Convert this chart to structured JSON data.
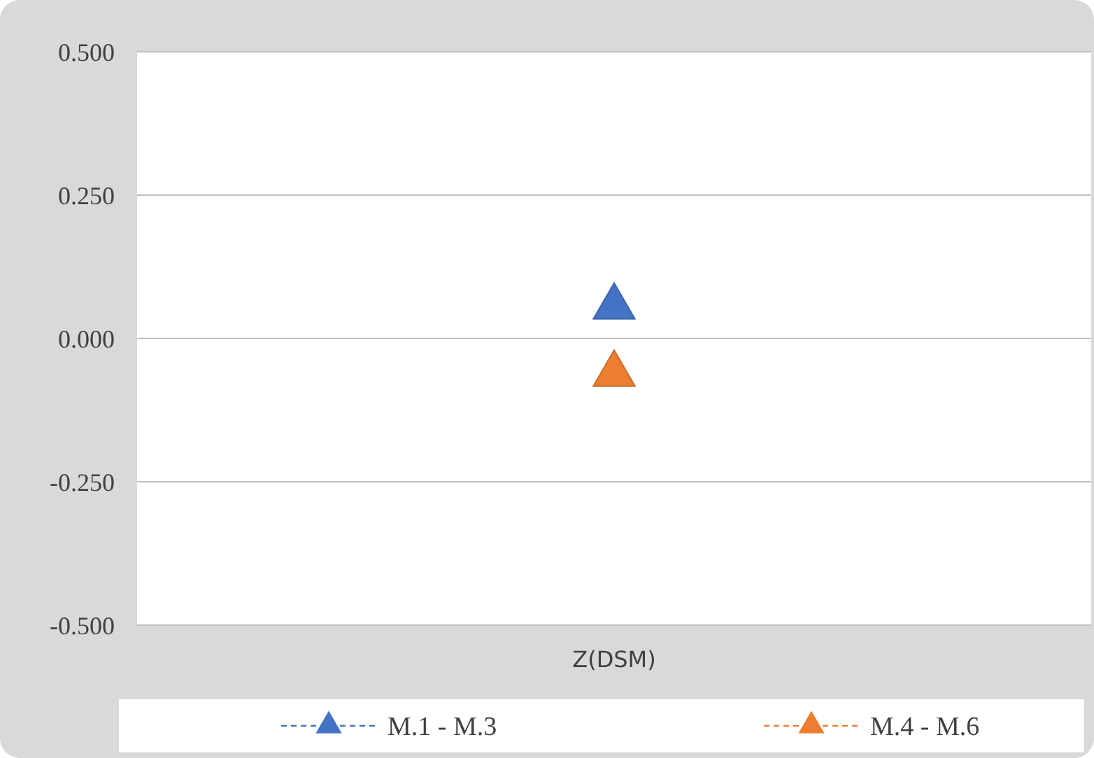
{
  "chart_data": {
    "type": "line",
    "categories": [
      "Z(DSM)"
    ],
    "series": [
      {
        "name": "M.1 - M.3",
        "color": "#4472c4",
        "values": [
          0.055
        ]
      },
      {
        "name": "M.4 - M.6",
        "color": "#ed7d31",
        "values": [
          -0.062
        ]
      }
    ],
    "ylim": [
      -0.5,
      0.5
    ],
    "yticks": [
      {
        "value": -0.5,
        "label": "-0.500"
      },
      {
        "value": -0.25,
        "label": "-0.250"
      },
      {
        "value": 0,
        "label": "0.000"
      },
      {
        "value": 0.25,
        "label": "0.250"
      },
      {
        "value": 0.5,
        "label": "0.500"
      }
    ],
    "grid": "y",
    "legend": "bottom",
    "marker": "triangle",
    "line_style": "dashed"
  }
}
